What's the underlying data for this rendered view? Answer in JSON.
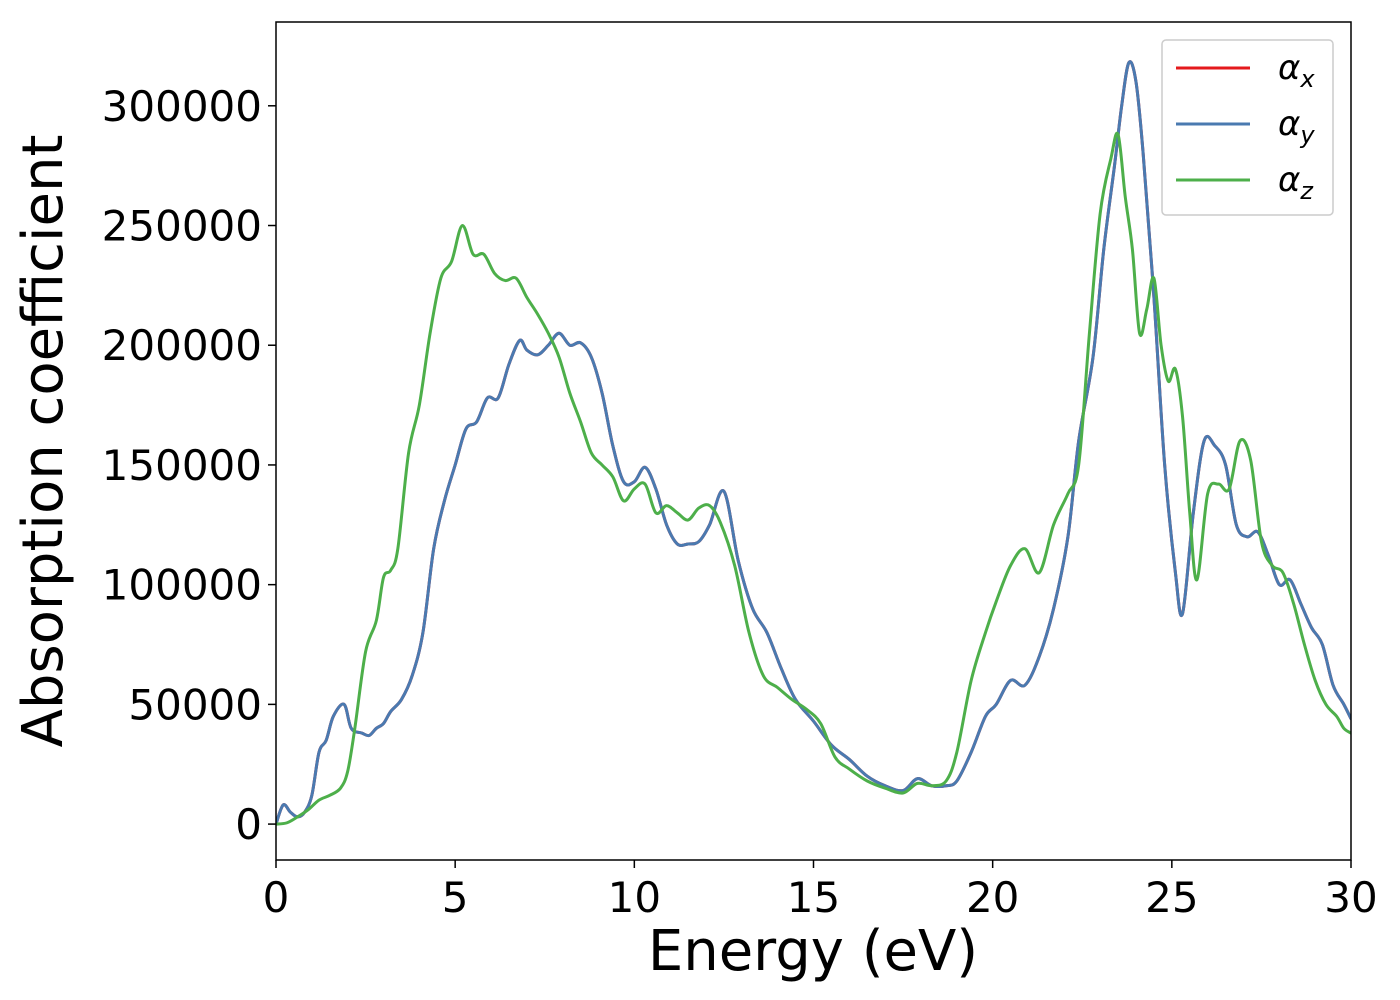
{
  "chart_data": {
    "type": "line",
    "title": "",
    "xlabel": "Energy (eV)",
    "ylabel": "Absorption coefficient",
    "xlim": [
      0,
      30
    ],
    "ylim": [
      -15000,
      335000
    ],
    "xticks": [
      0,
      5,
      10,
      15,
      20,
      25,
      30
    ],
    "xtick_labels": [
      "0",
      "5",
      "10",
      "15",
      "20",
      "25",
      "30"
    ],
    "yticks": [
      0,
      50000,
      100000,
      150000,
      200000,
      250000,
      300000
    ],
    "ytick_labels": [
      "0",
      "50000",
      "100000",
      "150000",
      "200000",
      "250000",
      "300000"
    ],
    "grid": false,
    "legend_position": "top-right",
    "series": [
      {
        "name": "α_x",
        "label_main": "α",
        "label_sub": "x",
        "color": "#e41a1c",
        "x": [
          0,
          0.2,
          0.4,
          0.6,
          0.8,
          1.0,
          1.2,
          1.4,
          1.6,
          1.9,
          2.1,
          2.4,
          2.6,
          2.8,
          3.0,
          3.2,
          3.5,
          3.8,
          4.1,
          4.4,
          4.7,
          5.0,
          5.3,
          5.6,
          5.9,
          6.2,
          6.5,
          6.8,
          7.0,
          7.3,
          7.6,
          7.9,
          8.2,
          8.5,
          8.8,
          9.1,
          9.4,
          9.7,
          10.0,
          10.3,
          10.6,
          10.9,
          11.2,
          11.5,
          11.8,
          12.1,
          12.5,
          12.9,
          13.3,
          13.7,
          14.1,
          14.5,
          15.0,
          15.5,
          16.0,
          16.5,
          17.0,
          17.5,
          17.9,
          18.3,
          18.7,
          19.0,
          19.4,
          19.8,
          20.1,
          20.5,
          20.9,
          21.3,
          21.7,
          22.1,
          22.4,
          22.8,
          23.1,
          23.4,
          23.6,
          23.8,
          24.0,
          24.2,
          24.5,
          24.8,
          25.1,
          25.3,
          25.6,
          25.9,
          26.2,
          26.5,
          26.8,
          27.1,
          27.4,
          27.7,
          28.0,
          28.3,
          28.6,
          28.9,
          29.2,
          29.5,
          29.8,
          30.0
        ],
        "values": [
          0,
          8000,
          5000,
          3000,
          5000,
          12000,
          30000,
          35000,
          45000,
          50000,
          40000,
          38000,
          37000,
          40000,
          42000,
          47000,
          52000,
          62000,
          80000,
          115000,
          135000,
          150000,
          165000,
          168000,
          178000,
          178000,
          192000,
          202000,
          198000,
          196000,
          200000,
          205000,
          200000,
          201000,
          195000,
          180000,
          158000,
          143000,
          143000,
          149000,
          140000,
          125000,
          117000,
          117000,
          118000,
          125000,
          139000,
          110000,
          90000,
          80000,
          65000,
          52000,
          43000,
          33000,
          27000,
          20000,
          16000,
          14000,
          19000,
          16000,
          16000,
          18000,
          30000,
          45000,
          50000,
          60000,
          58000,
          70000,
          90000,
          120000,
          160000,
          195000,
          240000,
          275000,
          300000,
          318000,
          310000,
          280000,
          220000,
          150000,
          105000,
          88000,
          130000,
          160000,
          158000,
          150000,
          125000,
          120000,
          122000,
          112000,
          100000,
          102000,
          92000,
          82000,
          75000,
          58000,
          50000,
          44000
        ]
      },
      {
        "name": "α_y",
        "label_main": "α",
        "label_sub": "y",
        "color": "#4a7ab0",
        "x": [
          0,
          0.2,
          0.4,
          0.6,
          0.8,
          1.0,
          1.2,
          1.4,
          1.6,
          1.9,
          2.1,
          2.4,
          2.6,
          2.8,
          3.0,
          3.2,
          3.5,
          3.8,
          4.1,
          4.4,
          4.7,
          5.0,
          5.3,
          5.6,
          5.9,
          6.2,
          6.5,
          6.8,
          7.0,
          7.3,
          7.6,
          7.9,
          8.2,
          8.5,
          8.8,
          9.1,
          9.4,
          9.7,
          10.0,
          10.3,
          10.6,
          10.9,
          11.2,
          11.5,
          11.8,
          12.1,
          12.5,
          12.9,
          13.3,
          13.7,
          14.1,
          14.5,
          15.0,
          15.5,
          16.0,
          16.5,
          17.0,
          17.5,
          17.9,
          18.3,
          18.7,
          19.0,
          19.4,
          19.8,
          20.1,
          20.5,
          20.9,
          21.3,
          21.7,
          22.1,
          22.4,
          22.8,
          23.1,
          23.4,
          23.6,
          23.8,
          24.0,
          24.2,
          24.5,
          24.8,
          25.1,
          25.3,
          25.6,
          25.9,
          26.2,
          26.5,
          26.8,
          27.1,
          27.4,
          27.7,
          28.0,
          28.3,
          28.6,
          28.9,
          29.2,
          29.5,
          29.8,
          30.0
        ],
        "values": [
          0,
          8000,
          5000,
          3000,
          5000,
          12000,
          30000,
          35000,
          45000,
          50000,
          40000,
          38000,
          37000,
          40000,
          42000,
          47000,
          52000,
          62000,
          80000,
          115000,
          135000,
          150000,
          165000,
          168000,
          178000,
          178000,
          192000,
          202000,
          198000,
          196000,
          200000,
          205000,
          200000,
          201000,
          195000,
          180000,
          158000,
          143000,
          143000,
          149000,
          140000,
          125000,
          117000,
          117000,
          118000,
          125000,
          139000,
          110000,
          90000,
          80000,
          65000,
          52000,
          43000,
          33000,
          27000,
          20000,
          16000,
          14000,
          19000,
          16000,
          16000,
          18000,
          30000,
          45000,
          50000,
          60000,
          58000,
          70000,
          90000,
          120000,
          160000,
          195000,
          240000,
          275000,
          300000,
          318000,
          310000,
          280000,
          220000,
          150000,
          105000,
          88000,
          130000,
          160000,
          158000,
          150000,
          125000,
          120000,
          122000,
          112000,
          100000,
          102000,
          92000,
          82000,
          75000,
          58000,
          50000,
          44000
        ]
      },
      {
        "name": "α_z",
        "label_main": "α",
        "label_sub": "z",
        "color": "#4daf4a",
        "x": [
          0,
          0.3,
          0.6,
          0.9,
          1.2,
          1.5,
          1.8,
          2.0,
          2.2,
          2.5,
          2.8,
          3.0,
          3.2,
          3.4,
          3.7,
          4.0,
          4.3,
          4.6,
          4.9,
          5.2,
          5.5,
          5.8,
          6.1,
          6.4,
          6.7,
          7.0,
          7.3,
          7.6,
          7.9,
          8.2,
          8.5,
          8.8,
          9.1,
          9.4,
          9.7,
          10.0,
          10.3,
          10.6,
          10.9,
          11.2,
          11.5,
          11.8,
          12.1,
          12.4,
          12.8,
          13.2,
          13.6,
          14.0,
          14.4,
          14.8,
          15.2,
          15.6,
          16.0,
          16.5,
          17.0,
          17.5,
          17.9,
          18.3,
          18.7,
          19.0,
          19.4,
          19.8,
          20.1,
          20.5,
          20.9,
          21.3,
          21.7,
          22.1,
          22.4,
          22.7,
          23.0,
          23.3,
          23.5,
          23.7,
          23.9,
          24.1,
          24.3,
          24.5,
          24.7,
          24.9,
          25.1,
          25.3,
          25.5,
          25.7,
          26.0,
          26.3,
          26.6,
          26.9,
          27.2,
          27.5,
          27.8,
          28.1,
          28.4,
          28.7,
          29.0,
          29.3,
          29.6,
          29.8,
          30.0
        ],
        "values": [
          0,
          500,
          3000,
          6000,
          10000,
          12000,
          15000,
          22000,
          40000,
          72000,
          85000,
          103000,
          106000,
          115000,
          155000,
          175000,
          205000,
          228000,
          235000,
          250000,
          238000,
          238000,
          230000,
          227000,
          228000,
          220000,
          213000,
          205000,
          195000,
          180000,
          168000,
          155000,
          150000,
          145000,
          135000,
          140000,
          142000,
          130000,
          133000,
          130000,
          127000,
          132000,
          133000,
          126000,
          108000,
          80000,
          62000,
          57000,
          52000,
          48000,
          42000,
          28000,
          23000,
          18000,
          15000,
          13000,
          17000,
          16000,
          18000,
          30000,
          60000,
          80000,
          93000,
          108000,
          115000,
          105000,
          125000,
          138000,
          150000,
          205000,
          255000,
          278000,
          288000,
          262000,
          240000,
          205000,
          215000,
          228000,
          200000,
          185000,
          190000,
          170000,
          130000,
          102000,
          138000,
          142000,
          140000,
          160000,
          152000,
          118000,
          108000,
          105000,
          92000,
          75000,
          60000,
          50000,
          45000,
          40000,
          38000
        ]
      }
    ]
  }
}
